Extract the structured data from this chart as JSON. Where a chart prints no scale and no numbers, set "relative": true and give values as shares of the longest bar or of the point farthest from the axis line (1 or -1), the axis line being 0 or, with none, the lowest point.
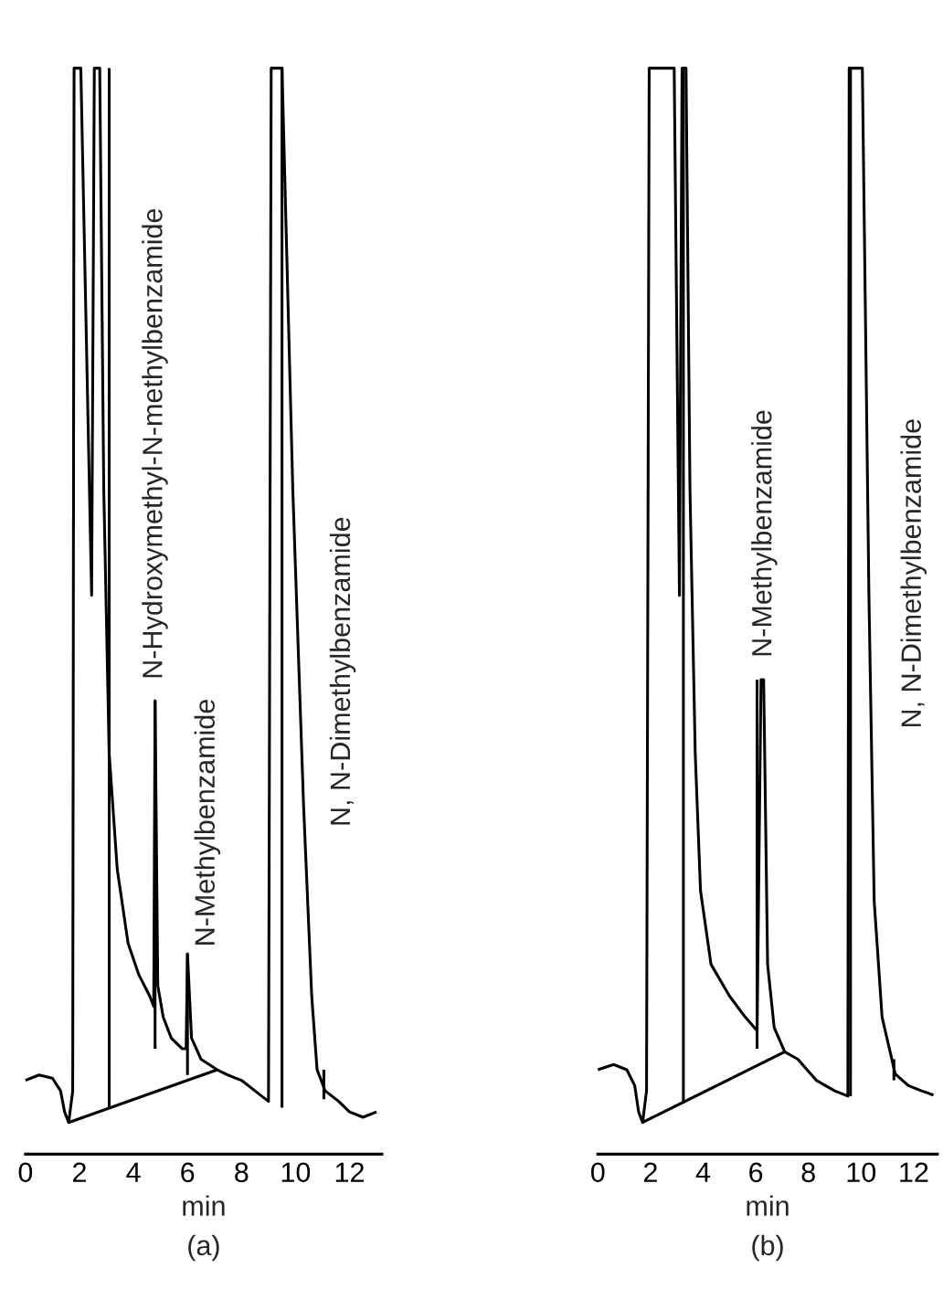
{
  "chart_data": [
    {
      "type": "line",
      "title": "(a)",
      "xlabel": "min",
      "relative": true,
      "xlim": [
        0,
        13.2
      ],
      "xticks": [
        0,
        2,
        4,
        6,
        8,
        10,
        12
      ],
      "grid": false,
      "legend": false,
      "series": [
        {
          "color": "#000000",
          "x": [
            0,
            0.5,
            1.0,
            1.3,
            1.45,
            1.6,
            1.75,
            1.8,
            2.05,
            2.45,
            2.55,
            2.75,
            2.9,
            3.1,
            3.4,
            3.8,
            4.2,
            4.6,
            4.75,
            4.8,
            4.9,
            5.1,
            5.4,
            5.8,
            5.95,
            6.0,
            6.15,
            6.5,
            7.1,
            7.5,
            8.0,
            8.5,
            9.0,
            9.1,
            9.5,
            9.9,
            10.3,
            10.6,
            10.8,
            11.1,
            11.6,
            12.0,
            12.5,
            13.0
          ],
          "values": [
            0.04,
            0.045,
            0.042,
            0.03,
            0.01,
            0.0,
            0.03,
            1.0,
            1.0,
            0.5,
            1.0,
            1.0,
            0.6,
            0.35,
            0.24,
            0.17,
            0.14,
            0.12,
            0.11,
            0.4,
            0.13,
            0.1,
            0.08,
            0.07,
            0.07,
            0.16,
            0.08,
            0.06,
            0.05,
            0.045,
            0.04,
            0.03,
            0.02,
            1.0,
            1.0,
            0.6,
            0.3,
            0.12,
            0.05,
            0.03,
            0.02,
            0.01,
            0.005,
            0.01
          ]
        },
        {
          "color": "#000000",
          "x": [
            1.6,
            7.1,
            null,
            3.1,
            3.1,
            null,
            4.8,
            4.8,
            null,
            6.0,
            6.0,
            null,
            9.5,
            9.5,
            null,
            11.05,
            11.05
          ],
          "values": [
            0.0,
            0.05,
            null,
            0.014,
            1.0,
            null,
            0.07,
            0.4,
            null,
            0.045,
            0.16,
            null,
            0.014,
            1.0,
            null,
            0.022,
            0.05
          ]
        }
      ],
      "annotations": [
        "N-Hydroxymethyl-N-methylbenzamide",
        "N-Methylbenzamide",
        "N, N-Dimethylbenzamide"
      ]
    },
    {
      "type": "line",
      "title": "(b)",
      "xlabel": "min",
      "relative": true,
      "xlim": [
        0,
        12.9
      ],
      "xticks": [
        0,
        2,
        4,
        6,
        8,
        10,
        12
      ],
      "grid": false,
      "legend": false,
      "series": [
        {
          "color": "#000000",
          "x": [
            0,
            0.6,
            1.1,
            1.4,
            1.55,
            1.7,
            1.85,
            1.95,
            2.9,
            3.1,
            3.2,
            3.35,
            3.5,
            3.7,
            3.9,
            4.3,
            5.0,
            5.6,
            6.05,
            6.2,
            6.3,
            6.45,
            6.7,
            7.1,
            7.6,
            8.3,
            9.0,
            9.5,
            9.55,
            10.05,
            10.3,
            10.5,
            10.8,
            11.3,
            11.8,
            12.3,
            12.75
          ],
          "values": [
            0.05,
            0.055,
            0.05,
            0.035,
            0.01,
            0.0,
            0.03,
            1.0,
            1.0,
            0.5,
            1.0,
            1.0,
            0.6,
            0.35,
            0.22,
            0.15,
            0.12,
            0.1,
            0.087,
            0.42,
            0.42,
            0.15,
            0.09,
            0.067,
            0.06,
            0.04,
            0.03,
            0.025,
            1.0,
            1.0,
            0.5,
            0.21,
            0.1,
            0.046,
            0.035,
            0.03,
            0.026
          ]
        },
        {
          "color": "#000000",
          "x": [
            1.7,
            7.1,
            null,
            3.25,
            3.25,
            null,
            6.05,
            6.05,
            null,
            9.6,
            9.6,
            null,
            11.25,
            11.25
          ],
          "values": [
            0.0,
            0.067,
            null,
            0.018,
            1.0,
            null,
            0.07,
            0.42,
            null,
            0.025,
            1.0,
            null,
            0.04,
            0.06
          ]
        }
      ],
      "annotations": [
        "N-Methylbenzamide",
        "N, N-Dimethylbenzamide"
      ]
    }
  ]
}
